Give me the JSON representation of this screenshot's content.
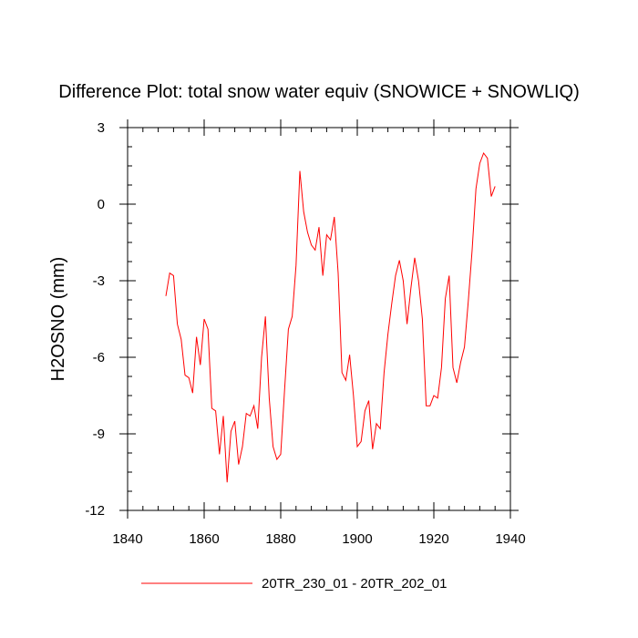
{
  "chart_data": {
    "type": "line",
    "title": "Difference Plot: total snow water equiv (SNOWICE + SNOWLIQ)",
    "xlabel": "",
    "ylabel": "H2OSNO  (mm)",
    "xlim": [
      1840,
      1940
    ],
    "ylim": [
      -12,
      3
    ],
    "x_ticks": [
      1840,
      1860,
      1880,
      1900,
      1920,
      1940
    ],
    "x_tick_labels": [
      "1840",
      "1860",
      "1880",
      "1900",
      "1920",
      "1940"
    ],
    "y_ticks": [
      -12,
      -9,
      -6,
      -3,
      0,
      3
    ],
    "y_tick_labels": [
      "-12",
      "-9",
      "-6",
      "-3",
      "0",
      "3"
    ],
    "x_minor_step": 4,
    "y_minor_step": 0.75,
    "grid": false,
    "legend_position": "bottom-center",
    "series": [
      {
        "name": "20TR_230_01 - 20TR_202_01",
        "color": "#ff0000",
        "x": [
          1850,
          1851,
          1852,
          1853,
          1854,
          1855,
          1856,
          1857,
          1858,
          1859,
          1860,
          1861,
          1862,
          1863,
          1864,
          1865,
          1866,
          1867,
          1868,
          1869,
          1870,
          1871,
          1872,
          1873,
          1874,
          1875,
          1876,
          1877,
          1878,
          1879,
          1880,
          1881,
          1882,
          1883,
          1884,
          1885,
          1886,
          1887,
          1888,
          1889,
          1890,
          1891,
          1892,
          1893,
          1894,
          1895,
          1896,
          1897,
          1898,
          1899,
          1900,
          1901,
          1902,
          1903,
          1904,
          1905,
          1906,
          1907,
          1908,
          1909,
          1910,
          1911,
          1912,
          1913,
          1914,
          1915,
          1916,
          1917,
          1918,
          1919,
          1920,
          1921,
          1922,
          1923,
          1924,
          1925,
          1926,
          1927,
          1928,
          1929,
          1930,
          1931,
          1932,
          1933,
          1934,
          1935,
          1936
        ],
        "y": [
          -3.6,
          -2.7,
          -2.8,
          -4.7,
          -5.3,
          -6.7,
          -6.8,
          -7.4,
          -5.2,
          -6.3,
          -4.5,
          -4.9,
          -8.0,
          -8.1,
          -9.8,
          -8.3,
          -10.9,
          -8.9,
          -8.5,
          -10.2,
          -9.5,
          -8.2,
          -8.3,
          -7.9,
          -8.8,
          -6.0,
          -4.4,
          -7.6,
          -9.5,
          -10.0,
          -9.8,
          -7.3,
          -4.9,
          -4.4,
          -2.4,
          1.3,
          -0.3,
          -1.1,
          -1.6,
          -1.8,
          -0.9,
          -2.8,
          -1.2,
          -1.4,
          -0.5,
          -2.7,
          -6.6,
          -6.9,
          -5.9,
          -7.5,
          -9.5,
          -9.3,
          -8.1,
          -7.7,
          -9.6,
          -8.6,
          -8.8,
          -6.6,
          -5.1,
          -3.9,
          -2.8,
          -2.2,
          -3.0,
          -4.7,
          -3.3,
          -2.1,
          -3.0,
          -4.5,
          -7.9,
          -7.9,
          -7.5,
          -7.6,
          -6.4,
          -3.7,
          -2.8,
          -6.4,
          -7.0,
          -6.2,
          -5.6,
          -3.8,
          -1.8,
          0.6,
          1.6,
          2.0,
          1.8,
          0.3,
          0.7
        ]
      }
    ]
  }
}
